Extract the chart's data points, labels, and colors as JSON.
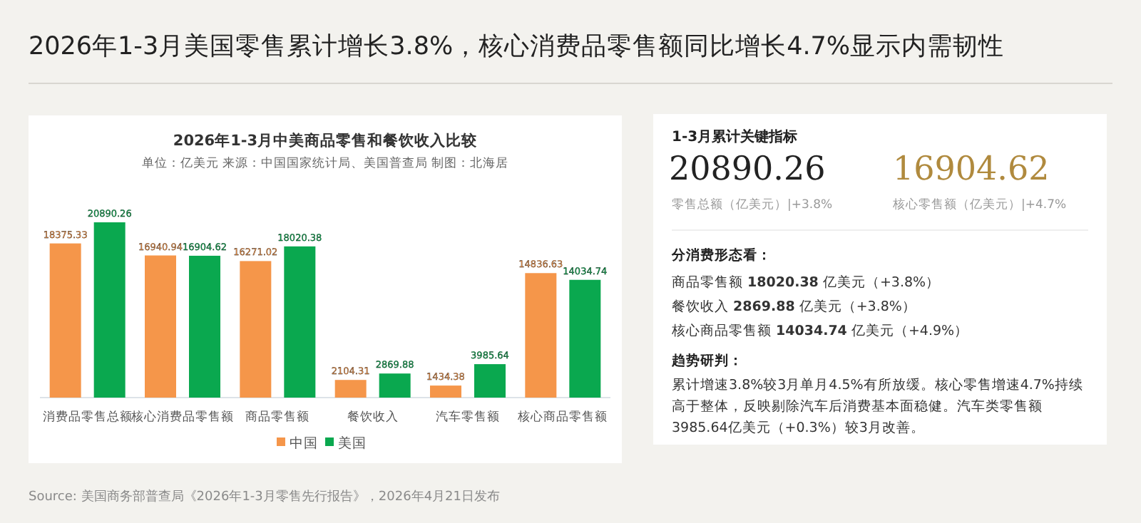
{
  "chart_data": [
    {
      "type": "bar",
      "title": "2026年1-3月中美商品零售和餐饮收入比较",
      "subtitle": "单位：亿美元 来源：中国国家统计局、美国普查局 制图：北海居",
      "categories": [
        "消费品零售总额",
        "核心消费品零售额",
        "商品零售额",
        "餐饮收入",
        "汽车零售额",
        "核心商品零售额"
      ],
      "series": [
        {
          "name": "中国",
          "color": "#f5964a",
          "values": [
            18375.33,
            16940.94,
            16271.02,
            2104.31,
            1434.38,
            14836.63
          ]
        },
        {
          "name": "美国",
          "color": "#0aa84f",
          "values": [
            20890.26,
            16904.62,
            18020.38,
            2869.88,
            3985.64,
            14034.74
          ]
        }
      ],
      "data_labels": true,
      "legend": "bottom",
      "grid": false,
      "annotations": [
        "2026年1-3月美国零售累计增长3.8%，核心消费品零售额同比增长4.7%显示内需韧性",
        "Source: 美国商务部普查局《2026年1-3月零售先行报告》，2026年4月21日发布"
      ]
    },
    {
      "type": "other",
      "title": "1-3月累计关键指标",
      "annotations": [
        "20890.26",
        "零售总额（亿美元）|+3.8%",
        "16904.62",
        "核心零售额（亿美元）|+4.7%",
        "分消费形态看：",
        "商品零售额 **18020.38** 亿美元（+3.8%）",
        "餐饮收入 **2869.88** 亿美元（+3.8%）",
        "核心商品零售额 **14034.74** 亿美元（+4.9%）",
        "趋势研判：",
        "累计增速3.8%较3月单月4.5%有所放缓。核心零售增速4.7%持续高于整体，反映剔除汽车后消费基本面稳健。汽车类零售额3985.64亿美元（+0.3%）较3月改善。"
      ]
    }
  ]
}
